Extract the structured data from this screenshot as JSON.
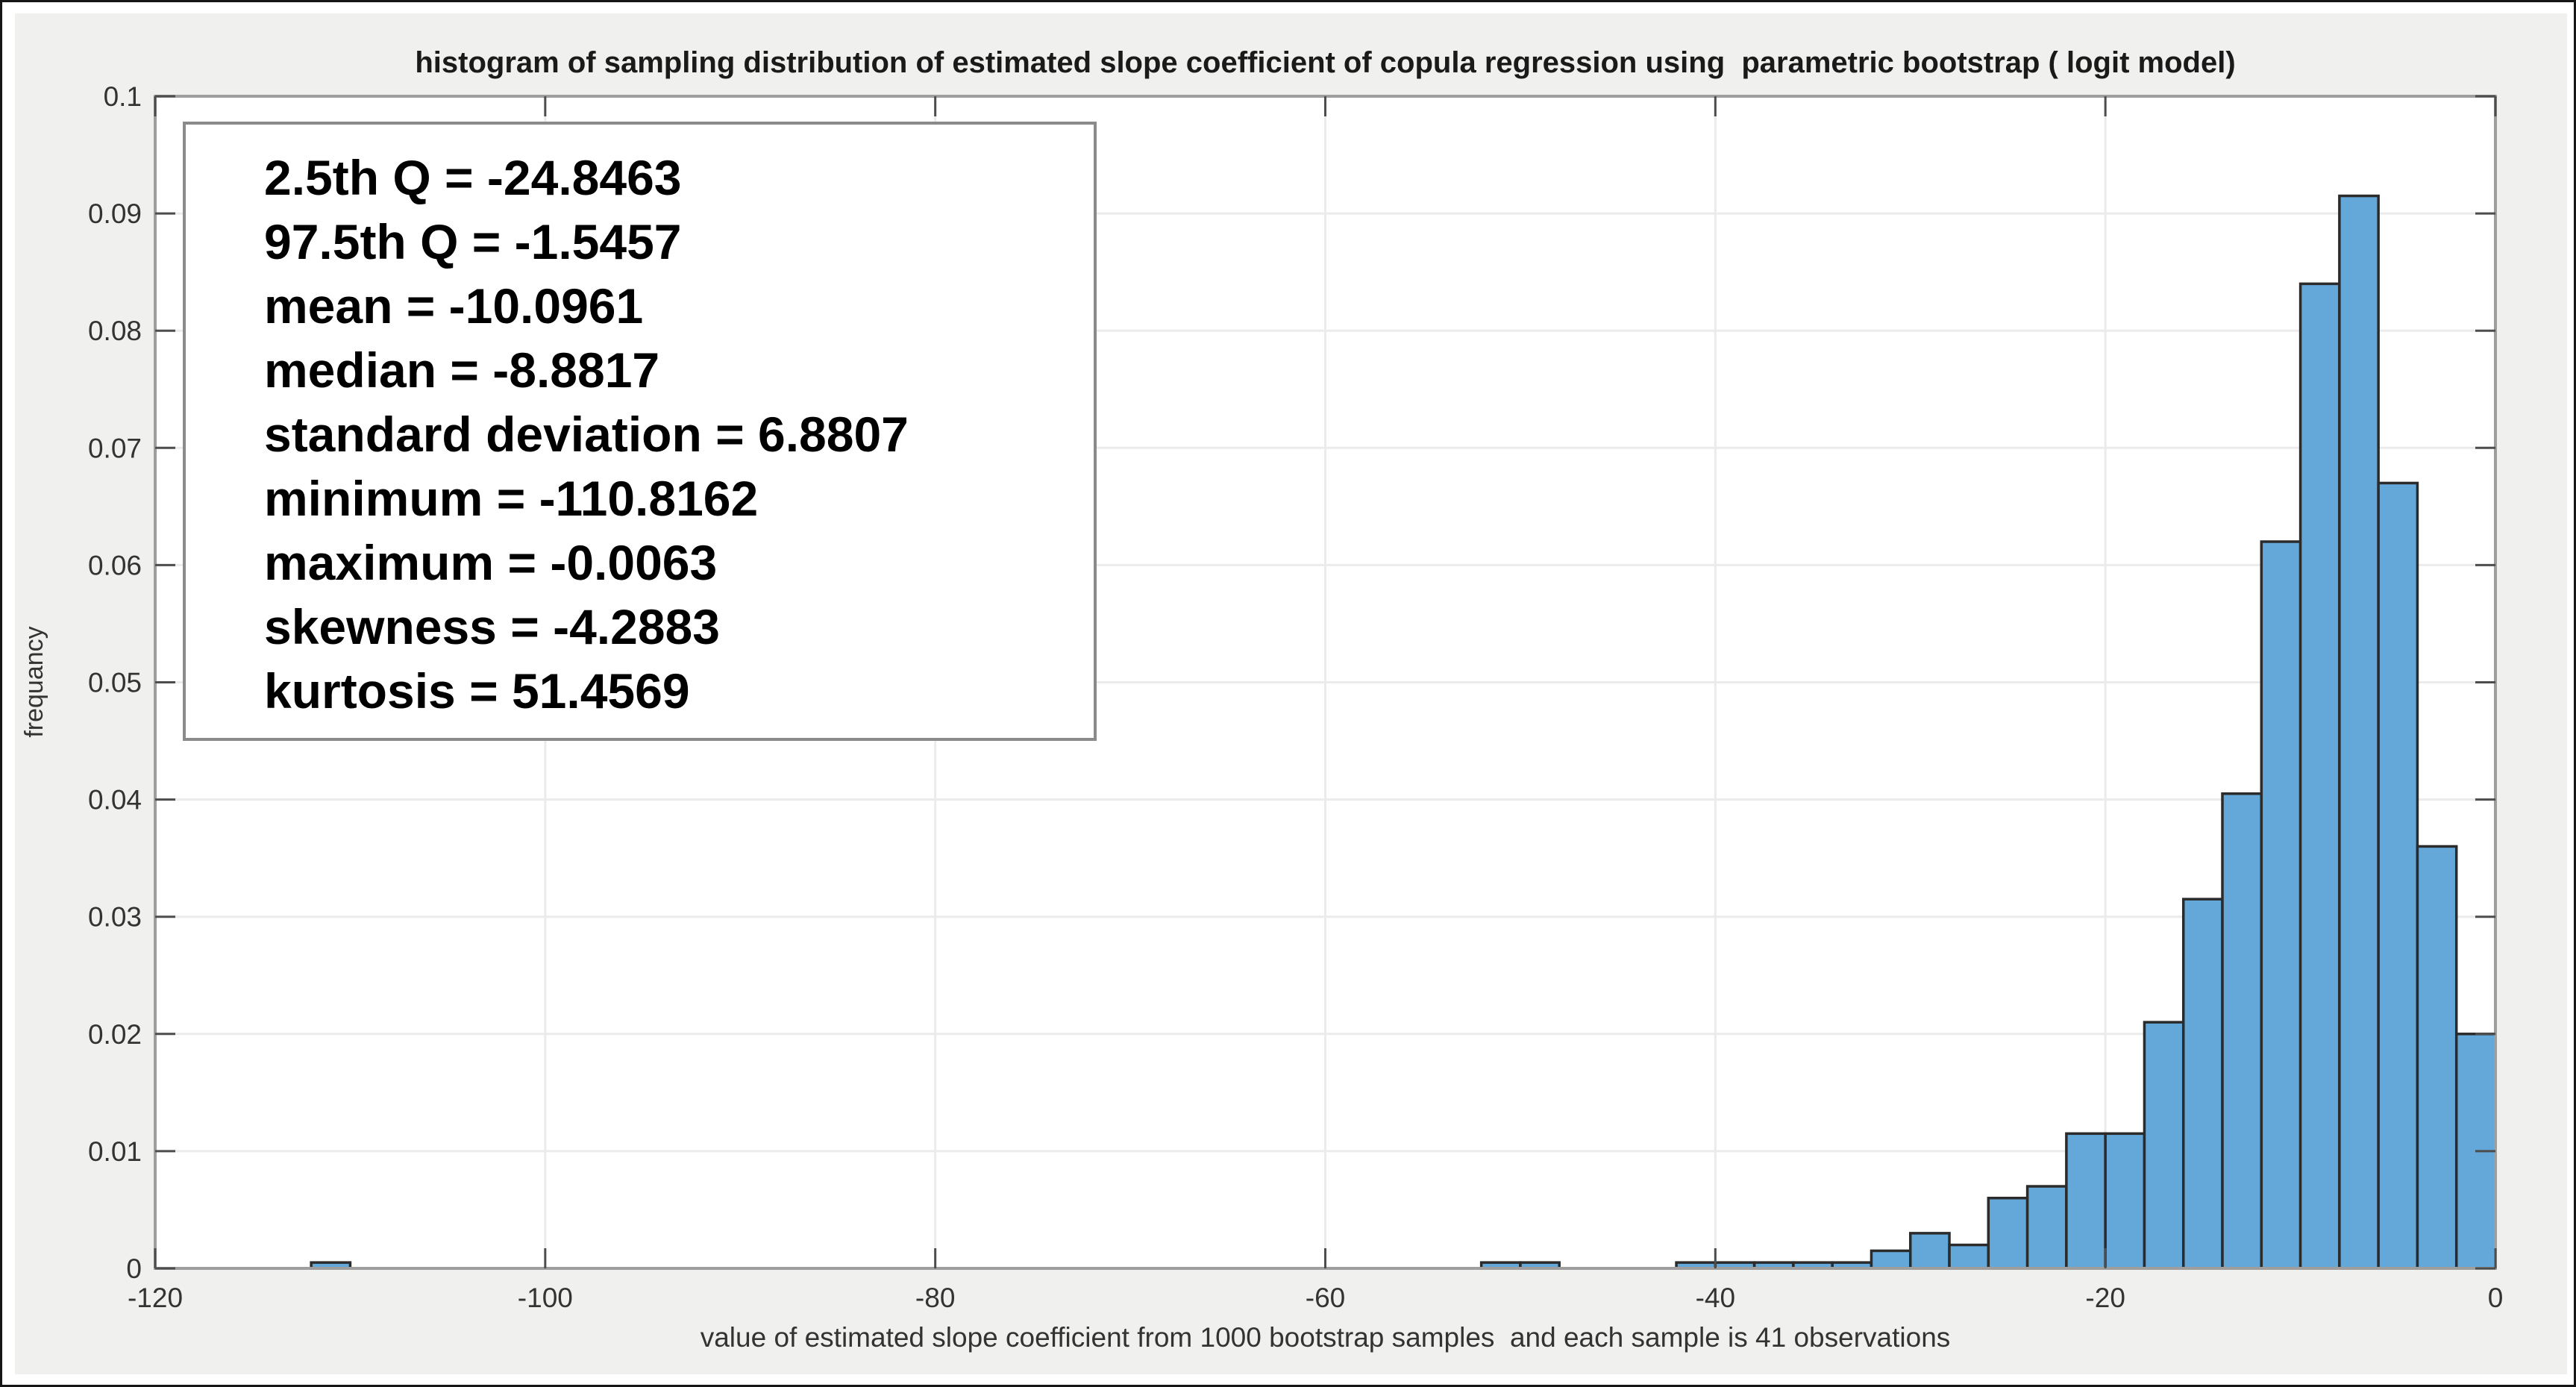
{
  "figure": {
    "background_color": "#f0f0ee",
    "plot_background_color": "#ffffff"
  },
  "stats_box": {
    "lines": [
      "2.5th Q = -24.8463",
      "97.5th Q = -1.5457",
      "mean = -10.0961",
      "median = -8.8817",
      "standard deviation = 6.8807",
      "minimum = -110.8162",
      "maximum = -0.0063",
      "skewness = -4.2883",
      "kurtosis = 51.4569"
    ]
  },
  "chart_data": {
    "type": "bar",
    "title": "histogram of sampling distribution of estimated slope coefficient of copula regression using  parametric bootstrap ( logit model)",
    "xlabel": "value of estimated slope coefficient from 1000 bootstrap samples  and each sample is 41 observations",
    "ylabel": "frequancy",
    "xlim": [
      -120,
      0
    ],
    "ylim": [
      0,
      0.1
    ],
    "xticks": [
      -120,
      -100,
      -80,
      -60,
      -40,
      -20,
      0
    ],
    "xtick_labels": [
      "-120",
      "-100",
      "-80",
      "-60",
      "-40",
      "-20",
      "0"
    ],
    "yticks": [
      0,
      0.01,
      0.02,
      0.03,
      0.04,
      0.05,
      0.06,
      0.07,
      0.08,
      0.09,
      0.1
    ],
    "ytick_labels": [
      "0",
      "0.01",
      "0.02",
      "0.03",
      "0.04",
      "0.05",
      "0.06",
      "0.07",
      "0.08",
      "0.09",
      "0.1"
    ],
    "grid": true,
    "legend": "none",
    "normalization": "pdf",
    "bin_width": 2,
    "bins": [
      {
        "x0": -112,
        "x1": -110,
        "height": 0.0005
      },
      {
        "x0": -52,
        "x1": -50,
        "height": 0.0005
      },
      {
        "x0": -50,
        "x1": -48,
        "height": 0.0005
      },
      {
        "x0": -42,
        "x1": -40,
        "height": 0.0005
      },
      {
        "x0": -40,
        "x1": -38,
        "height": 0.0005
      },
      {
        "x0": -38,
        "x1": -36,
        "height": 0.0005
      },
      {
        "x0": -36,
        "x1": -34,
        "height": 0.0005
      },
      {
        "x0": -34,
        "x1": -32,
        "height": 0.0005
      },
      {
        "x0": -32,
        "x1": -30,
        "height": 0.0015
      },
      {
        "x0": -30,
        "x1": -28,
        "height": 0.003
      },
      {
        "x0": -28,
        "x1": -26,
        "height": 0.002
      },
      {
        "x0": -26,
        "x1": -24,
        "height": 0.006
      },
      {
        "x0": -24,
        "x1": -22,
        "height": 0.007
      },
      {
        "x0": -22,
        "x1": -20,
        "height": 0.0115
      },
      {
        "x0": -20,
        "x1": -18,
        "height": 0.0115
      },
      {
        "x0": -18,
        "x1": -16,
        "height": 0.021
      },
      {
        "x0": -16,
        "x1": -14,
        "height": 0.0315
      },
      {
        "x0": -14,
        "x1": -12,
        "height": 0.0405
      },
      {
        "x0": -12,
        "x1": -10,
        "height": 0.062
      },
      {
        "x0": -10,
        "x1": -8,
        "height": 0.084
      },
      {
        "x0": -8,
        "x1": -6,
        "height": 0.0915
      },
      {
        "x0": -6,
        "x1": -4,
        "height": 0.067
      },
      {
        "x0": -4,
        "x1": -2,
        "height": 0.036
      },
      {
        "x0": -2,
        "x1": 0,
        "height": 0.02
      }
    ],
    "colors": {
      "bar_fill": "#64a7d9",
      "bar_edge": "#2b2b2b",
      "grid": "#ebebeb",
      "axis_box": "#9e9e9e",
      "tick": "#4d4d4d",
      "tick_label": "#333333",
      "title": "#1a1a1a"
    }
  }
}
